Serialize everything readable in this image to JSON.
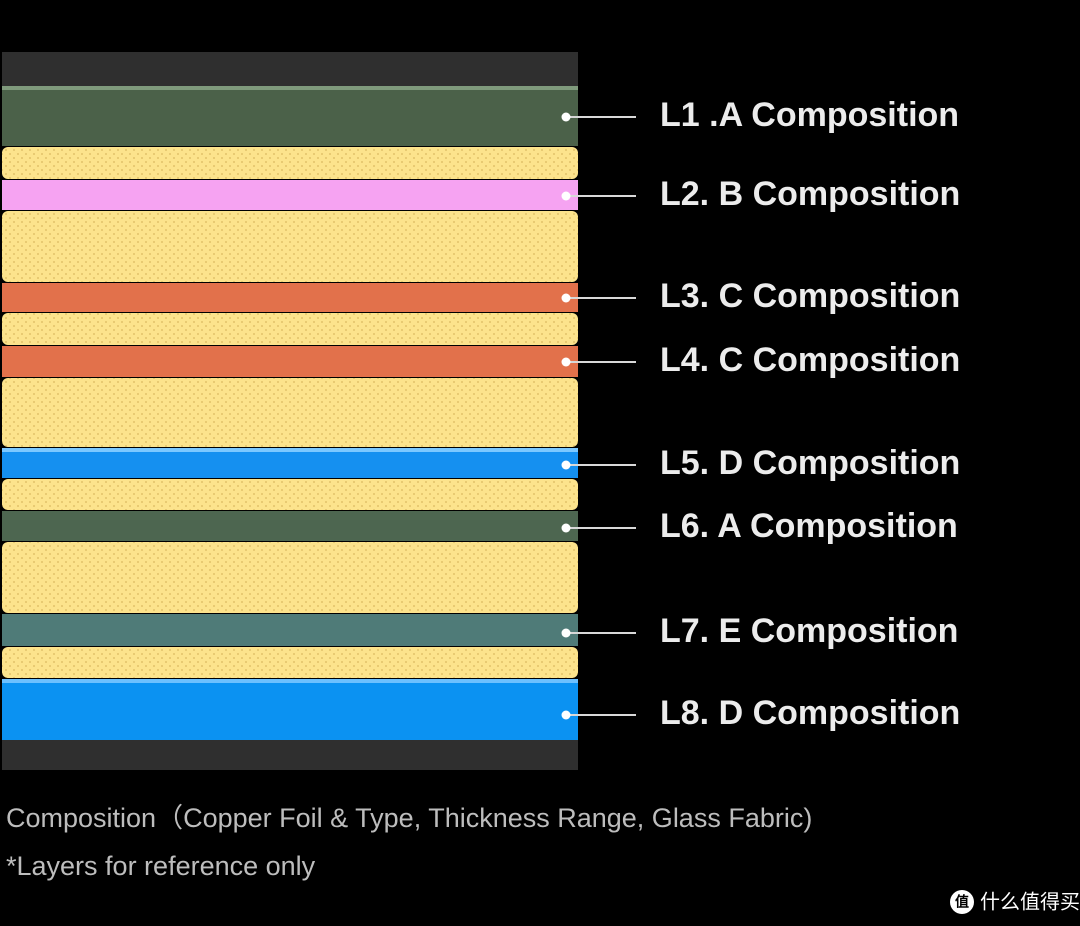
{
  "layers": [
    {
      "label": "L1 .A Composition"
    },
    {
      "label": "L2. B Composition"
    },
    {
      "label": "L3. C Composition"
    },
    {
      "label": "L4. C Composition"
    },
    {
      "label": "L5. D Composition"
    },
    {
      "label": "L6. A Composition"
    },
    {
      "label": "L7. E Composition"
    },
    {
      "label": "L8. D Composition"
    }
  ],
  "caption": "Composition（Copper Foil & Type, Thickness Range, Glass Fabric)",
  "note": "*Layers for reference only",
  "watermark": "什么值得买"
}
